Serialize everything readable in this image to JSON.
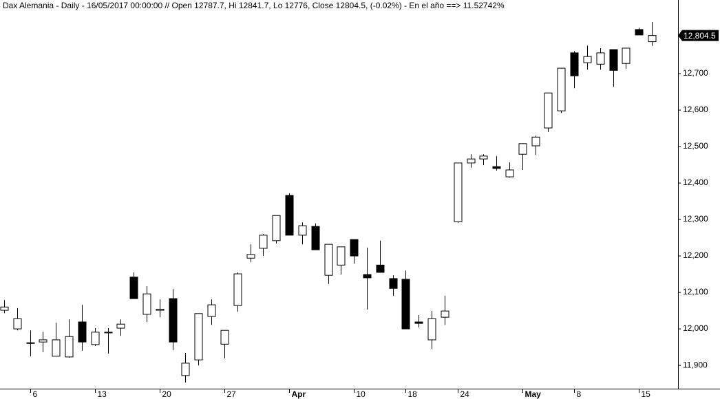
{
  "chart_data": {
    "type": "candlestick",
    "title": "Dax Alemania - Daily - 16/05/2017 00:00:00 // Open 12787.7, Hi 12841.7, Lo 12776, Close 12804.5, (-0.02%) - En el año ==> 11.52742%",
    "categories": [
      null,
      null,
      "6",
      null,
      null,
      null,
      null,
      "13",
      null,
      null,
      null,
      null,
      "20",
      null,
      null,
      null,
      null,
      "27",
      null,
      null,
      null,
      null,
      "Apr",
      null,
      null,
      null,
      null,
      "10",
      null,
      null,
      null,
      "18",
      null,
      null,
      null,
      "24",
      null,
      null,
      null,
      null,
      "May",
      null,
      null,
      null,
      "8",
      null,
      null,
      null,
      null,
      "15",
      null
    ],
    "open": [
      12051,
      12000,
      11960,
      11964,
      11925,
      11923,
      12019,
      11957,
      11989,
      12002,
      12142,
      12040,
      12051,
      12083,
      11872,
      11915,
      12034,
      11958,
      12064,
      12194,
      12221,
      12242,
      12366,
      12257,
      12281,
      12147,
      12175,
      12245,
      12149,
      12175,
      12138,
      12136,
      12019,
      11970,
      12032,
      12294,
      12455,
      12466,
      12445,
      12417,
      12479,
      12502,
      12551,
      12598,
      12757,
      12730,
      12726,
      12766,
      12728,
      12821,
      12787.7
    ],
    "high": [
      12079,
      12057,
      11996,
      11992,
      12017,
      12026,
      12066,
      12002,
      12002,
      12026,
      12155,
      12117,
      12081,
      12109,
      11934,
      12042,
      12081,
      11996,
      12155,
      12232,
      12260,
      12311,
      12372,
      12292,
      12289,
      12232,
      12225,
      12245,
      12223,
      12242,
      12147,
      12160,
      12038,
      12049,
      12091,
      12455,
      12479,
      12479,
      12474,
      12457,
      12508,
      12530,
      12647,
      12715,
      12762,
      12777,
      12770,
      12766,
      12770,
      12826,
      12841.7
    ],
    "low": [
      12043,
      11996,
      11925,
      11936,
      11925,
      11921,
      11940,
      11953,
      11932,
      11981,
      12083,
      12019,
      12032,
      11942,
      11853,
      11900,
      12011,
      11919,
      12047,
      12183,
      12200,
      12234,
      12257,
      12232,
      12217,
      12123,
      12149,
      12179,
      12053,
      12155,
      12091,
      12000,
      12004,
      11945,
      12011,
      12291,
      12442,
      12449,
      12434,
      12415,
      12436,
      12477,
      12540,
      12592,
      12660,
      12711,
      12711,
      12664,
      12713,
      12806,
      12776
    ],
    "close": [
      12060,
      12028,
      11962,
      11970,
      11970,
      11979,
      11964,
      11991,
      11991,
      12013,
      12083,
      12096,
      12054,
      11964,
      11906,
      12042,
      12066,
      11996,
      12151,
      12204,
      12257,
      12311,
      12257,
      12283,
      12217,
      12232,
      12225,
      12200,
      12140,
      12155,
      12111,
      12000,
      12015,
      12028,
      12049,
      12455,
      12466,
      12474,
      12440,
      12436,
      12508,
      12526,
      12647,
      12715,
      12694,
      12747,
      12757,
      12709,
      12770,
      12806,
      12804.5
    ],
    "up_color": "#ffffff",
    "down_color": "#000000",
    "ylim": [
      11836,
      12902
    ],
    "yticks": [
      {
        "value": 11900,
        "label": "11,900"
      },
      {
        "value": 12000,
        "label": "12,000"
      },
      {
        "value": 12100,
        "label": "12,100"
      },
      {
        "value": 12200,
        "label": "12,200"
      },
      {
        "value": 12300,
        "label": "12,300"
      },
      {
        "value": 12400,
        "label": "12,400"
      },
      {
        "value": 12500,
        "label": "12,500"
      },
      {
        "value": 12600,
        "label": "12,600"
      },
      {
        "value": 12700,
        "label": "12,700"
      }
    ],
    "last_price": {
      "value": 12804.5,
      "label": "12,804.5"
    },
    "grid": false
  }
}
